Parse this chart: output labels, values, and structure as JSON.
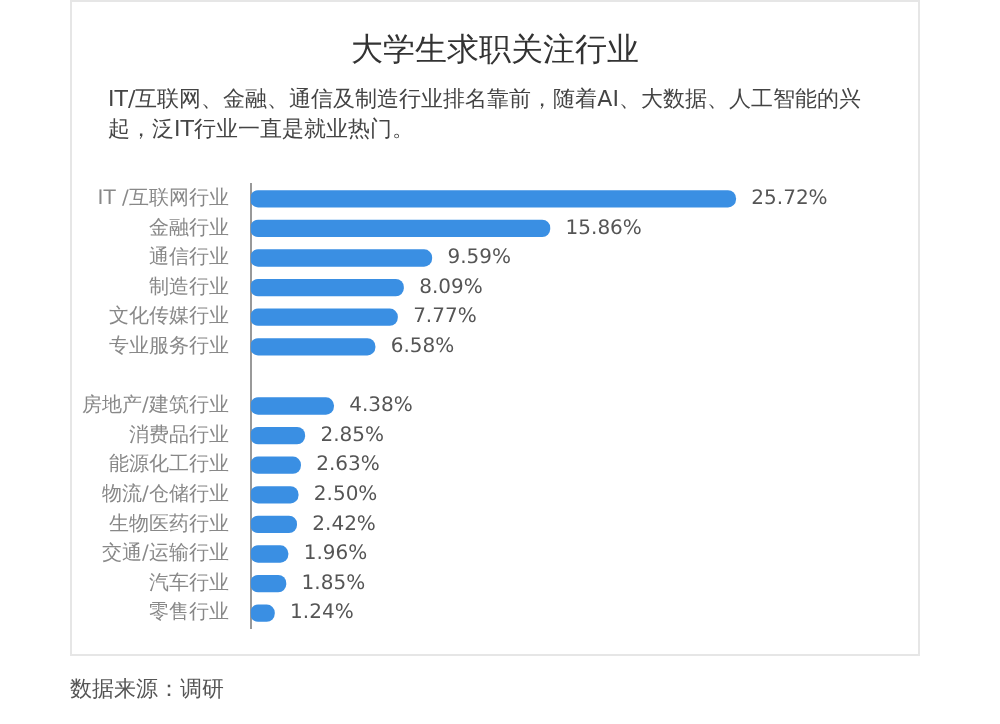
{
  "chart_data": {
    "type": "bar",
    "orientation": "horizontal",
    "title": "大学生求职关注行业",
    "subtitle": "IT/互联网、金融、通信及制造行业排名靠前，随着AI、大数据、人工智能的兴起，泛IT行业一直是就业热门。",
    "categories": [
      "IT /互联网行业",
      "金融行业",
      "通信行业",
      "制造行业",
      "文化传媒行业",
      "专业服务行业",
      null,
      "房地产/建筑行业",
      "消费品行业",
      "能源化工行业",
      "物流/仓储行业",
      "生物医药行业",
      "交通/运输行业",
      "汽车行业",
      "零售行业"
    ],
    "values": [
      25.72,
      15.86,
      9.59,
      8.09,
      7.77,
      6.58,
      null,
      4.38,
      2.85,
      2.63,
      2.5,
      2.42,
      1.96,
      1.85,
      1.24
    ],
    "value_labels": [
      "25.72%",
      "15.86%",
      "9.59%",
      "8.09%",
      "7.77%",
      "6.58%",
      null,
      "4.38%",
      "2.85%",
      "2.63%",
      "2.50%",
      "2.42%",
      "1.96%",
      "1.85%",
      "1.24%"
    ],
    "color": "#3a8fe3",
    "annotations": [
      "数据来源：调研"
    ]
  }
}
